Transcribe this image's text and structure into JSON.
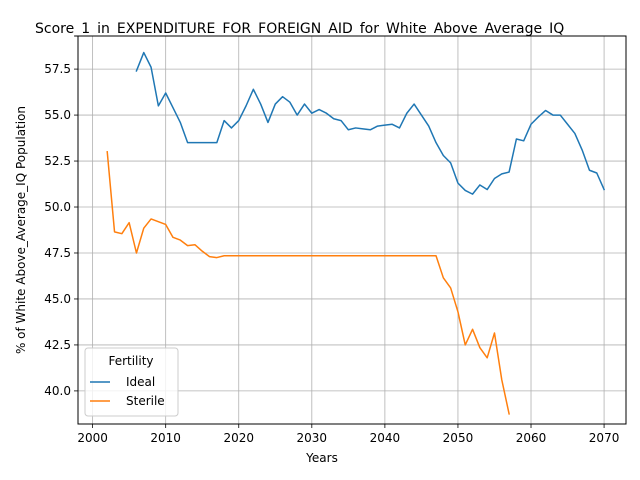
{
  "chart_data": {
    "type": "line",
    "title": "Score_1_in_EXPENDITURE_FOR_FOREIGN_AID_for_White_Above_Average_IQ",
    "xlabel": "Years",
    "ylabel": "% of White Above_Average_IQ Population",
    "xlim": [
      1998,
      2073
    ],
    "ylim": [
      38.2,
      59.3
    ],
    "xticks": [
      2000,
      2010,
      2020,
      2030,
      2040,
      2050,
      2060,
      2070
    ],
    "yticks": [
      40.0,
      42.5,
      45.0,
      47.5,
      50.0,
      52.5,
      55.0,
      57.5
    ],
    "ytick_labels": [
      "40.0",
      "42.5",
      "45.0",
      "47.5",
      "50.0",
      "52.5",
      "55.0",
      "57.5"
    ],
    "grid": true,
    "legend": {
      "title": "Fertility",
      "placement": "lower-left"
    },
    "series": [
      {
        "name": "Ideal",
        "color": "#1f77b4",
        "x": [
          2006,
          2007,
          2008,
          2009,
          2010,
          2011,
          2012,
          2013,
          2014,
          2015,
          2016,
          2017,
          2018,
          2019,
          2020,
          2021,
          2022,
          2023,
          2024,
          2025,
          2026,
          2027,
          2028,
          2029,
          2030,
          2031,
          2032,
          2033,
          2034,
          2035,
          2036,
          2037,
          2038,
          2039,
          2040,
          2041,
          2042,
          2043,
          2044,
          2045,
          2046,
          2047,
          2048,
          2049,
          2050,
          2051,
          2052,
          2053,
          2054,
          2055,
          2056,
          2057,
          2058,
          2059,
          2060,
          2061,
          2062,
          2063,
          2064,
          2065,
          2066,
          2067,
          2068,
          2069,
          2070
        ],
        "y": [
          57.4,
          58.4,
          57.6,
          55.5,
          56.2,
          55.4,
          54.6,
          53.5,
          53.5,
          53.5,
          53.5,
          53.5,
          54.7,
          54.3,
          54.7,
          55.5,
          56.4,
          55.6,
          54.6,
          55.6,
          56.0,
          55.7,
          55.0,
          55.6,
          55.1,
          55.3,
          55.1,
          54.8,
          54.7,
          54.2,
          54.3,
          54.25,
          54.2,
          54.4,
          54.45,
          54.5,
          54.3,
          55.1,
          55.6,
          55.0,
          54.4,
          53.5,
          52.8,
          52.4,
          51.3,
          50.9,
          50.7,
          51.2,
          50.95,
          51.55,
          51.8,
          51.9,
          53.7,
          53.6,
          54.5,
          54.9,
          55.25,
          55.0,
          55.0,
          54.5,
          54.0,
          53.1,
          52.0,
          51.85,
          50.95
        ]
      },
      {
        "name": "Sterile",
        "color": "#ff7f0e",
        "x": [
          2002,
          2003,
          2004,
          2005,
          2006,
          2007,
          2008,
          2009,
          2010,
          2011,
          2012,
          2013,
          2014,
          2015,
          2016,
          2017,
          2018,
          2019,
          2020,
          2021,
          2022,
          2023,
          2024,
          2025,
          2026,
          2027,
          2028,
          2029,
          2030,
          2031,
          2032,
          2033,
          2034,
          2035,
          2036,
          2037,
          2038,
          2039,
          2040,
          2041,
          2042,
          2043,
          2044,
          2045,
          2046,
          2047,
          2048,
          2049,
          2050,
          2051,
          2052,
          2053,
          2054,
          2055,
          2056,
          2057
        ],
        "y": [
          53.0,
          48.65,
          48.55,
          49.15,
          47.5,
          48.85,
          49.35,
          49.2,
          49.05,
          48.35,
          48.2,
          47.9,
          47.95,
          47.6,
          47.3,
          47.25,
          47.35,
          47.35,
          47.35,
          47.35,
          47.35,
          47.35,
          47.35,
          47.35,
          47.35,
          47.35,
          47.35,
          47.35,
          47.35,
          47.35,
          47.35,
          47.35,
          47.35,
          47.35,
          47.35,
          47.35,
          47.35,
          47.35,
          47.35,
          47.35,
          47.35,
          47.35,
          47.35,
          47.35,
          47.35,
          47.35,
          46.15,
          45.6,
          44.3,
          42.5,
          43.35,
          42.35,
          41.8,
          43.15,
          40.6,
          38.75
        ]
      }
    ]
  }
}
